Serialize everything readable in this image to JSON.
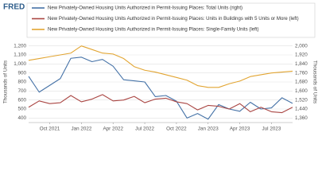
{
  "chart_data": {
    "type": "line",
    "logo": "FRED",
    "categories": [
      null,
      null,
      "Oct 2021",
      null,
      null,
      "Jan 2022",
      null,
      null,
      "Apr 2022",
      null,
      null,
      "Jul 2022",
      null,
      null,
      "Oct 2022",
      null,
      null,
      "Jan 2023",
      null,
      null,
      "Apr 2023",
      null,
      null,
      "Jul 2023",
      null,
      null
    ],
    "series": [
      {
        "name": "New Privately-Owned Housing Units Authorized in Permit-Issuing Places: Total Units (right)",
        "color": "#4572a7",
        "axis": "y2",
        "values": [
          1730,
          1590,
          1650,
          1710,
          1890,
          1900,
          1860,
          1880,
          1820,
          1700,
          1690,
          1680,
          1550,
          1560,
          1510,
          1360,
          1400,
          1350,
          1480,
          1440,
          1420,
          1500,
          1440,
          1450,
          1540,
          1490
        ]
      },
      {
        "name": "New Privately-Owned Housing Units Authorized in Permit-Issuing Places: Units in Buildings with 5 Units or More (left)",
        "color": "#aa4643",
        "values": [
          520,
          590,
          560,
          570,
          650,
          580,
          610,
          660,
          590,
          600,
          640,
          570,
          610,
          620,
          580,
          560,
          490,
          540,
          530,
          500,
          560,
          470,
          520,
          470,
          460,
          520
        ]
      },
      {
        "name": "New Privately-Owned Housing Units Authorized in Permit-Issuing Places: Single-Family Units (left)",
        "color": "#e2a532",
        "values": [
          1040,
          1060,
          1080,
          1100,
          1120,
          1200,
          1160,
          1120,
          1110,
          1060,
          970,
          930,
          910,
          880,
          850,
          820,
          760,
          740,
          740,
          780,
          810,
          860,
          880,
          900,
          910,
          920
        ]
      }
    ],
    "ylabel": "Thousands of Units",
    "y2label": "Thousands of Units",
    "ylim": [
      350,
      1250
    ],
    "yticks": [
      400,
      500,
      600,
      700,
      800,
      900,
      {
        "value": 1000,
        "label": "1,000"
      },
      {
        "value": 1100,
        "label": "1,100"
      },
      {
        "value": 1200,
        "label": "1,200"
      }
    ],
    "y2lim": [
      1320,
      2040
    ],
    "y2ticks": [
      {
        "value": 1360,
        "label": "1,360"
      },
      {
        "value": 1440,
        "label": "1,440"
      },
      {
        "value": 1520,
        "label": "1,520"
      },
      {
        "value": 1600,
        "label": "1,600"
      },
      {
        "value": 1680,
        "label": "1,680"
      },
      {
        "value": 1760,
        "label": "1,760"
      },
      {
        "value": 1840,
        "label": "1,840"
      },
      {
        "value": 1920,
        "label": "1,920"
      },
      {
        "value": 2000,
        "label": "2,000"
      }
    ],
    "grid": true
  }
}
